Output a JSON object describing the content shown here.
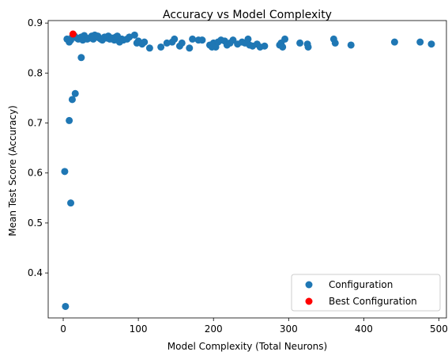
{
  "chart_data": {
    "type": "scatter",
    "title": "Accuracy vs Model Complexity",
    "xlabel": "Model Complexity (Total Neurons)",
    "ylabel": "Mean Test Score (Accuracy)",
    "xlim": [
      -20,
      510
    ],
    "ylim": [
      0.31,
      0.905
    ],
    "x_ticks": [
      0,
      100,
      200,
      300,
      400,
      500
    ],
    "y_ticks": [
      0.4,
      0.5,
      0.6,
      0.7,
      0.8,
      0.9
    ],
    "grid": false,
    "legend_position": "bottom-right",
    "series": [
      {
        "name": "Configuration",
        "color": "#1f77b4",
        "points": [
          [
            3,
            0.333
          ],
          [
            2,
            0.603
          ],
          [
            10,
            0.54
          ],
          [
            8,
            0.705
          ],
          [
            12,
            0.747
          ],
          [
            16,
            0.759
          ],
          [
            24,
            0.831
          ],
          [
            5,
            0.868
          ],
          [
            8,
            0.862
          ],
          [
            10,
            0.866
          ],
          [
            12,
            0.872
          ],
          [
            15,
            0.874
          ],
          [
            18,
            0.87
          ],
          [
            20,
            0.868
          ],
          [
            24,
            0.872
          ],
          [
            26,
            0.866
          ],
          [
            28,
            0.875
          ],
          [
            30,
            0.87
          ],
          [
            32,
            0.868
          ],
          [
            35,
            0.87
          ],
          [
            38,
            0.874
          ],
          [
            40,
            0.868
          ],
          [
            42,
            0.876
          ],
          [
            44,
            0.872
          ],
          [
            46,
            0.874
          ],
          [
            48,
            0.87
          ],
          [
            50,
            0.868
          ],
          [
            52,
            0.866
          ],
          [
            55,
            0.872
          ],
          [
            58,
            0.87
          ],
          [
            60,
            0.874
          ],
          [
            62,
            0.868
          ],
          [
            65,
            0.87
          ],
          [
            68,
            0.866
          ],
          [
            70,
            0.872
          ],
          [
            72,
            0.874
          ],
          [
            75,
            0.862
          ],
          [
            78,
            0.868
          ],
          [
            80,
            0.866
          ],
          [
            85,
            0.868
          ],
          [
            88,
            0.872
          ],
          [
            95,
            0.876
          ],
          [
            98,
            0.86
          ],
          [
            100,
            0.864
          ],
          [
            105,
            0.858
          ],
          [
            108,
            0.862
          ],
          [
            115,
            0.85
          ],
          [
            130,
            0.852
          ],
          [
            138,
            0.86
          ],
          [
            145,
            0.862
          ],
          [
            148,
            0.868
          ],
          [
            155,
            0.854
          ],
          [
            158,
            0.86
          ],
          [
            168,
            0.85
          ],
          [
            172,
            0.868
          ],
          [
            180,
            0.866
          ],
          [
            185,
            0.866
          ],
          [
            195,
            0.856
          ],
          [
            198,
            0.852
          ],
          [
            200,
            0.86
          ],
          [
            203,
            0.852
          ],
          [
            206,
            0.862
          ],
          [
            210,
            0.866
          ],
          [
            215,
            0.864
          ],
          [
            218,
            0.856
          ],
          [
            222,
            0.86
          ],
          [
            226,
            0.866
          ],
          [
            232,
            0.858
          ],
          [
            238,
            0.862
          ],
          [
            242,
            0.86
          ],
          [
            246,
            0.868
          ],
          [
            248,
            0.856
          ],
          [
            252,
            0.854
          ],
          [
            258,
            0.858
          ],
          [
            262,
            0.852
          ],
          [
            268,
            0.854
          ],
          [
            288,
            0.856
          ],
          [
            290,
            0.86
          ],
          [
            292,
            0.852
          ],
          [
            295,
            0.868
          ],
          [
            315,
            0.86
          ],
          [
            325,
            0.858
          ],
          [
            326,
            0.852
          ],
          [
            360,
            0.868
          ],
          [
            362,
            0.86
          ],
          [
            383,
            0.856
          ],
          [
            441,
            0.862
          ],
          [
            475,
            0.862
          ],
          [
            490,
            0.858
          ]
        ]
      },
      {
        "name": "Best Configuration",
        "color": "#ff0000",
        "points": [
          [
            13,
            0.878
          ]
        ]
      }
    ]
  }
}
